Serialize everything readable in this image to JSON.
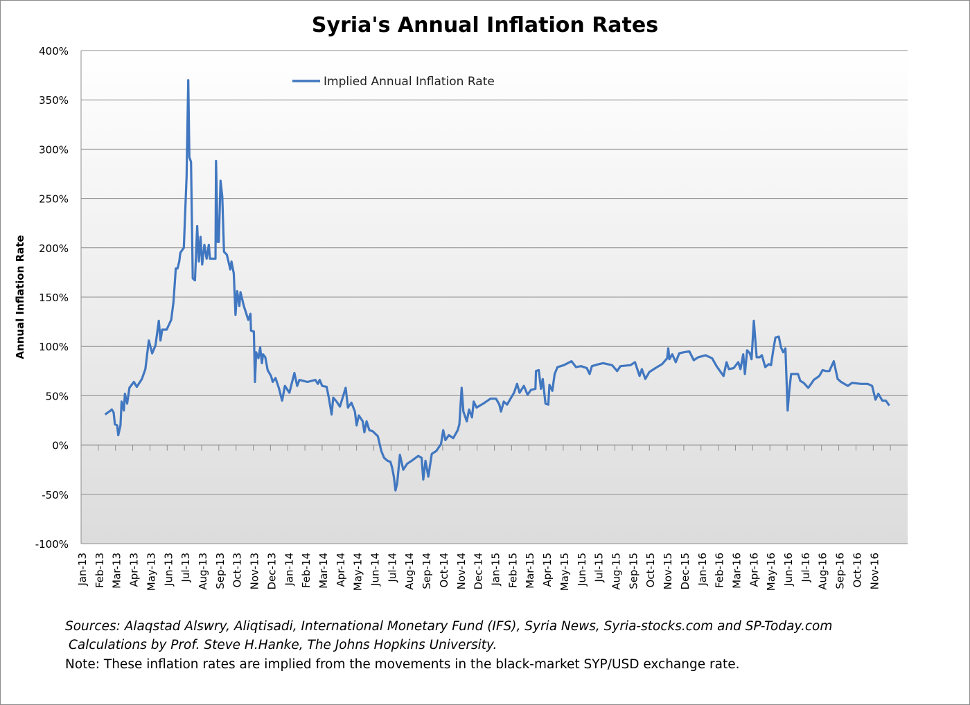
{
  "title": "Syria's Annual Inflation Rates",
  "footer": {
    "sources": "Sources: Alaqstad Alswry, Aliqtisadi, International Monetary Fund (IFS), Syria News, Syria-stocks.com and SP-Today.com",
    "calculations": "Calculations by Prof. Steve H.Hanke, The Johns Hopkins University.",
    "note": "Note: These inflation rates are implied from the movements in the black-market SYP/USD exchange rate."
  },
  "chart_data": {
    "type": "line",
    "title": "Syria's Annual Inflation Rates",
    "xlabel": "",
    "ylabel": "Annual Inflation Rate",
    "ylim": [
      -100,
      400
    ],
    "yticks": [
      -100,
      -50,
      0,
      50,
      100,
      150,
      200,
      250,
      300,
      350,
      400
    ],
    "ytick_labels": [
      "-100%",
      "-50%",
      "0%",
      "50%",
      "100%",
      "150%",
      "200%",
      "250%",
      "300%",
      "350%",
      "400%"
    ],
    "xlim": [
      "2013-01-01",
      "2016-12-01"
    ],
    "xtick_labels": [
      "Jan-13",
      "Feb-13",
      "Mar-13",
      "Apr-13",
      "May-13",
      "Jun-13",
      "Jul-13",
      "Aug-13",
      "Sep-13",
      "Oct-13",
      "Nov-13",
      "Dec-13",
      "Jan-14",
      "Feb-14",
      "Mar-14",
      "Apr-14",
      "May-14",
      "Jun-14",
      "Jul-14",
      "Aug-14",
      "Sep-14",
      "Oct-14",
      "Nov-14",
      "Dec-14",
      "Jan-15",
      "Feb-15",
      "Mar-15",
      "Apr-15",
      "May-15",
      "Jun-15",
      "Jul-15",
      "Aug-15",
      "Sep-15",
      "Oct-15",
      "Nov-15",
      "Dec-15",
      "Jan-16",
      "Feb-16",
      "Mar-16",
      "Apr-16",
      "May-16",
      "Jun-16",
      "Jul-16",
      "Aug-16",
      "Sep-16",
      "Oct-16",
      "Nov-16"
    ],
    "grid": true,
    "legend_position": "top-left",
    "series_color": "#4177C0",
    "series": [
      {
        "name": "Implied Annual Inflation Rate",
        "points": [
          [
            "2013-02-12",
            31
          ],
          [
            "2013-02-19",
            34
          ],
          [
            "2013-02-23",
            36
          ],
          [
            "2013-02-26",
            33
          ],
          [
            "2013-02-28",
            21
          ],
          [
            "2013-03-04",
            20
          ],
          [
            "2013-03-06",
            10
          ],
          [
            "2013-03-10",
            20
          ],
          [
            "2013-03-12",
            44
          ],
          [
            "2013-03-16",
            35
          ],
          [
            "2013-03-18",
            52
          ],
          [
            "2013-03-22",
            42
          ],
          [
            "2013-03-26",
            58
          ],
          [
            "2013-04-03",
            64
          ],
          [
            "2013-04-08",
            59
          ],
          [
            "2013-04-17",
            67
          ],
          [
            "2013-04-23",
            77
          ],
          [
            "2013-04-29",
            106
          ],
          [
            "2013-05-05",
            93
          ],
          [
            "2013-05-11",
            101
          ],
          [
            "2013-05-17",
            126
          ],
          [
            "2013-05-20",
            106
          ],
          [
            "2013-05-23",
            117
          ],
          [
            "2013-05-31",
            117
          ],
          [
            "2013-06-08",
            127
          ],
          [
            "2013-06-12",
            145
          ],
          [
            "2013-06-16",
            179
          ],
          [
            "2013-06-19",
            179
          ],
          [
            "2013-06-22",
            186
          ],
          [
            "2013-06-24",
            195
          ],
          [
            "2013-06-30",
            200
          ],
          [
            "2013-07-02",
            229
          ],
          [
            "2013-07-05",
            272
          ],
          [
            "2013-07-08",
            370
          ],
          [
            "2013-07-10",
            292
          ],
          [
            "2013-07-13",
            287
          ],
          [
            "2013-07-16",
            169
          ],
          [
            "2013-07-20",
            167
          ],
          [
            "2013-07-24",
            222
          ],
          [
            "2013-07-27",
            186
          ],
          [
            "2013-07-30",
            211
          ],
          [
            "2013-08-02",
            183
          ],
          [
            "2013-08-06",
            203
          ],
          [
            "2013-08-10",
            189
          ],
          [
            "2013-08-14",
            203
          ],
          [
            "2013-08-16",
            189
          ],
          [
            "2013-08-26",
            189
          ],
          [
            "2013-08-27",
            288
          ],
          [
            "2013-08-30",
            206
          ],
          [
            "2013-09-01",
            206
          ],
          [
            "2013-09-04",
            268
          ],
          [
            "2013-09-07",
            252
          ],
          [
            "2013-09-10",
            196
          ],
          [
            "2013-09-15",
            193
          ],
          [
            "2013-09-21",
            178
          ],
          [
            "2013-09-23",
            186
          ],
          [
            "2013-09-27",
            174
          ],
          [
            "2013-09-30",
            132
          ],
          [
            "2013-10-03",
            156
          ],
          [
            "2013-10-07",
            141
          ],
          [
            "2013-10-09",
            155
          ],
          [
            "2013-10-15",
            141
          ],
          [
            "2013-10-23",
            127
          ],
          [
            "2013-10-27",
            133
          ],
          [
            "2013-10-28",
            116
          ],
          [
            "2013-11-02",
            115
          ],
          [
            "2013-11-04",
            64
          ],
          [
            "2013-11-06",
            94
          ],
          [
            "2013-11-10",
            88
          ],
          [
            "2013-11-13",
            99
          ],
          [
            "2013-11-16",
            83
          ],
          [
            "2013-11-18",
            92
          ],
          [
            "2013-11-22",
            89
          ],
          [
            "2013-11-26",
            76
          ],
          [
            "2013-12-02",
            70
          ],
          [
            "2013-12-05",
            64
          ],
          [
            "2013-12-10",
            68
          ],
          [
            "2013-12-16",
            58
          ],
          [
            "2013-12-22",
            45
          ],
          [
            "2013-12-27",
            60
          ],
          [
            "2014-01-04",
            53
          ],
          [
            "2014-01-08",
            62
          ],
          [
            "2014-01-13",
            73
          ],
          [
            "2014-01-18",
            60
          ],
          [
            "2014-01-22",
            66
          ],
          [
            "2014-02-05",
            64
          ],
          [
            "2014-02-18",
            66
          ],
          [
            "2014-02-22",
            62
          ],
          [
            "2014-02-25",
            66
          ],
          [
            "2014-03-01",
            60
          ],
          [
            "2014-03-09",
            59
          ],
          [
            "2014-03-13",
            48
          ],
          [
            "2014-03-18",
            31
          ],
          [
            "2014-03-21",
            48
          ],
          [
            "2014-03-27",
            44
          ],
          [
            "2014-04-02",
            39
          ],
          [
            "2014-04-12",
            58
          ],
          [
            "2014-04-16",
            38
          ],
          [
            "2014-04-22",
            43
          ],
          [
            "2014-04-28",
            34
          ],
          [
            "2014-05-01",
            20
          ],
          [
            "2014-05-05",
            30
          ],
          [
            "2014-05-12",
            24
          ],
          [
            "2014-05-15",
            13
          ],
          [
            "2014-05-19",
            24
          ],
          [
            "2014-05-24",
            15
          ],
          [
            "2014-05-30",
            14
          ],
          [
            "2014-06-08",
            9
          ],
          [
            "2014-06-14",
            -6
          ],
          [
            "2014-06-19",
            -13
          ],
          [
            "2014-06-25",
            -16
          ],
          [
            "2014-06-30",
            -17
          ],
          [
            "2014-07-03",
            -23
          ],
          [
            "2014-07-06",
            -32
          ],
          [
            "2014-07-09",
            -46
          ],
          [
            "2014-07-12",
            -39
          ],
          [
            "2014-07-17",
            -10
          ],
          [
            "2014-07-23",
            -25
          ],
          [
            "2014-07-30",
            -19
          ],
          [
            "2014-08-07",
            -16
          ],
          [
            "2014-08-19",
            -11
          ],
          [
            "2014-08-25",
            -13
          ],
          [
            "2014-08-28",
            -35
          ],
          [
            "2014-09-01",
            -16
          ],
          [
            "2014-09-06",
            -32
          ],
          [
            "2014-09-12",
            -9
          ],
          [
            "2014-09-20",
            -6
          ],
          [
            "2014-09-28",
            1
          ],
          [
            "2014-10-02",
            15
          ],
          [
            "2014-10-06",
            5
          ],
          [
            "2014-10-12",
            10
          ],
          [
            "2014-10-20",
            7
          ],
          [
            "2014-10-28",
            15
          ],
          [
            "2014-10-31",
            21
          ],
          [
            "2014-11-04",
            58
          ],
          [
            "2014-11-07",
            34
          ],
          [
            "2014-11-13",
            24
          ],
          [
            "2014-11-17",
            36
          ],
          [
            "2014-11-22",
            28
          ],
          [
            "2014-11-25",
            44
          ],
          [
            "2014-11-30",
            38
          ],
          [
            "2014-12-12",
            42
          ],
          [
            "2014-12-25",
            47
          ],
          [
            "2015-01-04",
            47
          ],
          [
            "2015-01-10",
            41
          ],
          [
            "2015-01-13",
            34
          ],
          [
            "2015-01-18",
            44
          ],
          [
            "2015-01-24",
            41
          ],
          [
            "2015-01-30",
            47
          ],
          [
            "2015-02-05",
            53
          ],
          [
            "2015-02-10",
            62
          ],
          [
            "2015-02-14",
            53
          ],
          [
            "2015-02-21",
            60
          ],
          [
            "2015-02-27",
            51
          ],
          [
            "2015-03-05",
            56
          ],
          [
            "2015-03-13",
            57
          ],
          [
            "2015-03-14",
            75
          ],
          [
            "2015-03-19",
            76
          ],
          [
            "2015-03-23",
            57
          ],
          [
            "2015-03-26",
            67
          ],
          [
            "2015-03-31",
            42
          ],
          [
            "2015-04-05",
            41
          ],
          [
            "2015-04-07",
            61
          ],
          [
            "2015-04-12",
            55
          ],
          [
            "2015-04-16",
            72
          ],
          [
            "2015-04-21",
            79
          ],
          [
            "2015-05-02",
            81
          ],
          [
            "2015-05-16",
            85
          ],
          [
            "2015-05-24",
            79
          ],
          [
            "2015-06-02",
            80
          ],
          [
            "2015-06-12",
            78
          ],
          [
            "2015-06-17",
            72
          ],
          [
            "2015-06-21",
            80
          ],
          [
            "2015-07-03",
            82
          ],
          [
            "2015-07-11",
            83
          ],
          [
            "2015-07-27",
            81
          ],
          [
            "2015-08-05",
            75
          ],
          [
            "2015-08-11",
            80
          ],
          [
            "2015-08-29",
            81
          ],
          [
            "2015-09-06",
            84
          ],
          [
            "2015-09-14",
            70
          ],
          [
            "2015-09-18",
            77
          ],
          [
            "2015-09-24",
            67
          ],
          [
            "2015-10-01",
            74
          ],
          [
            "2015-10-12",
            78
          ],
          [
            "2015-10-24",
            82
          ],
          [
            "2015-11-02",
            88
          ],
          [
            "2015-11-04",
            98
          ],
          [
            "2015-11-06",
            87
          ],
          [
            "2015-11-11",
            92
          ],
          [
            "2015-11-17",
            84
          ],
          [
            "2015-11-23",
            93
          ],
          [
            "2015-12-01",
            94
          ],
          [
            "2015-12-11",
            95
          ],
          [
            "2015-12-19",
            86
          ],
          [
            "2015-12-27",
            89
          ],
          [
            "2016-01-09",
            91
          ],
          [
            "2016-01-21",
            88
          ],
          [
            "2016-01-29",
            80
          ],
          [
            "2016-02-04",
            75
          ],
          [
            "2016-02-10",
            70
          ],
          [
            "2016-02-15",
            84
          ],
          [
            "2016-02-19",
            77
          ],
          [
            "2016-02-27",
            78
          ],
          [
            "2016-03-06",
            84
          ],
          [
            "2016-03-10",
            77
          ],
          [
            "2016-03-15",
            92
          ],
          [
            "2016-03-18",
            72
          ],
          [
            "2016-03-22",
            96
          ],
          [
            "2016-03-27",
            93
          ],
          [
            "2016-03-30",
            87
          ],
          [
            "2016-04-03",
            126
          ],
          [
            "2016-04-08",
            89
          ],
          [
            "2016-04-13",
            89
          ],
          [
            "2016-04-17",
            91
          ],
          [
            "2016-04-23",
            79
          ],
          [
            "2016-04-29",
            82
          ],
          [
            "2016-05-03",
            81
          ],
          [
            "2016-05-07",
            96
          ],
          [
            "2016-05-11",
            109
          ],
          [
            "2016-05-17",
            110
          ],
          [
            "2016-05-21",
            99
          ],
          [
            "2016-05-25",
            94
          ],
          [
            "2016-05-29",
            98
          ],
          [
            "2016-06-02",
            35
          ],
          [
            "2016-06-05",
            56
          ],
          [
            "2016-06-08",
            72
          ],
          [
            "2016-06-20",
            72
          ],
          [
            "2016-06-24",
            65
          ],
          [
            "2016-06-30",
            63
          ],
          [
            "2016-07-08",
            58
          ],
          [
            "2016-07-12",
            61
          ],
          [
            "2016-07-18",
            66
          ],
          [
            "2016-07-28",
            70
          ],
          [
            "2016-08-03",
            76
          ],
          [
            "2016-08-09",
            75
          ],
          [
            "2016-08-15",
            75
          ],
          [
            "2016-08-23",
            85
          ],
          [
            "2016-08-30",
            67
          ],
          [
            "2016-09-05",
            64
          ],
          [
            "2016-09-17",
            60
          ],
          [
            "2016-09-24",
            63
          ],
          [
            "2016-10-10",
            62
          ],
          [
            "2016-10-22",
            62
          ],
          [
            "2016-10-30",
            60
          ],
          [
            "2016-11-05",
            46
          ],
          [
            "2016-11-10",
            52
          ],
          [
            "2016-11-17",
            45
          ],
          [
            "2016-11-23",
            45
          ],
          [
            "2016-11-29",
            40
          ]
        ]
      }
    ]
  }
}
